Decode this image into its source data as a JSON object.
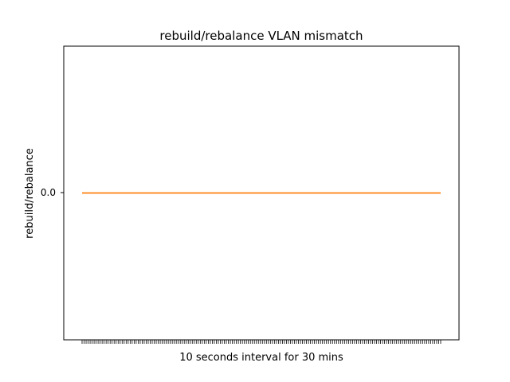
{
  "chart_data": {
    "type": "line",
    "title": "rebuild/rebalance VLAN mismatch",
    "xlabel": "10 seconds interval for 30 mins",
    "ylabel": "rebuild/rebalance",
    "x_tick_labels_visible": false,
    "yticks": [
      "0.0"
    ],
    "ylim": [
      -0.055,
      0.055
    ],
    "grid": false,
    "series": [
      {
        "color": "#ff7f0e",
        "x_count": 180,
        "values_constant": 0.0
      }
    ]
  }
}
